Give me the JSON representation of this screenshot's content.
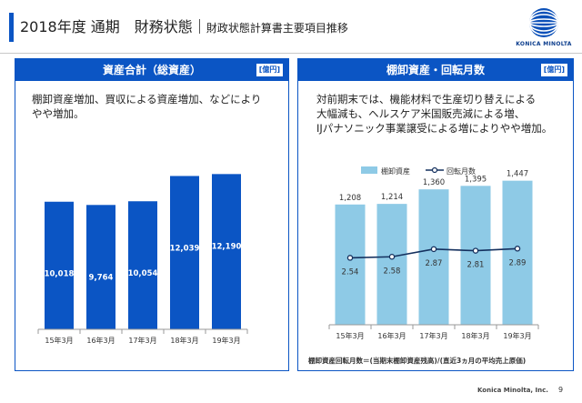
{
  "header": {
    "title_main": "2018年度 通期　財務状態",
    "title_sub": "財政状態計算書主要項目推移"
  },
  "brand": {
    "logo_text": "KONICA MINOLTA",
    "accent": "#0b55c4",
    "light_blue": "#8ecae6"
  },
  "panels": {
    "left": {
      "title": "資産合計（総資産）",
      "unit": "[億円]",
      "desc": [
        "棚卸資産増加、買収による資産増加、などにより",
        "やや増加。"
      ]
    },
    "right": {
      "title": "棚卸資産・回転月数",
      "unit": "[億円]",
      "desc": [
        "対前期末では、機能材料で生産切り替えによる",
        "大幅減も、ヘルスケア米国販売減による増、",
        "IJパナソニック事業譲受による増によりやや増加。"
      ]
    }
  },
  "chart_data": [
    {
      "type": "bar",
      "categories": [
        "15年3月",
        "16年3月",
        "17年3月",
        "18年3月",
        "19年3月"
      ],
      "values": [
        10018,
        9764,
        10054,
        12039,
        12190
      ],
      "value_labels": [
        "10,018",
        "9,764",
        "10,054",
        "12,039",
        "12,190"
      ],
      "title": "資産合計（総資産）",
      "ylim": [
        0,
        14000
      ],
      "color": "#0b55c4",
      "grid": false
    },
    {
      "type": "bar",
      "categories": [
        "15年3月",
        "16年3月",
        "17年3月",
        "18年3月",
        "19年3月"
      ],
      "series": [
        {
          "name": "棚卸資産",
          "type": "bar",
          "values": [
            1208,
            1214,
            1360,
            1395,
            1447
          ],
          "value_labels": [
            "1,208",
            "1,214",
            "1,360",
            "1,395",
            "1,447"
          ],
          "color": "#8ecae6"
        },
        {
          "name": "回転月数",
          "type": "line",
          "values": [
            2.54,
            2.58,
            2.87,
            2.81,
            2.89
          ],
          "value_labels": [
            "2.54",
            "2.58",
            "2.87",
            "2.81",
            "2.89"
          ],
          "color": "#14305e"
        }
      ],
      "title": "棚卸資産・回転月数",
      "ylim": [
        0,
        1800
      ],
      "y2lim": [
        0,
        6.8
      ],
      "legend": "top",
      "grid": false
    }
  ],
  "footnote": "棚卸資産回転月数＝(当期末棚卸資産残高)/(直近3ヵ月の平均売上原価)",
  "footer": {
    "company": "Konica Minolta, Inc.",
    "page": "9"
  }
}
